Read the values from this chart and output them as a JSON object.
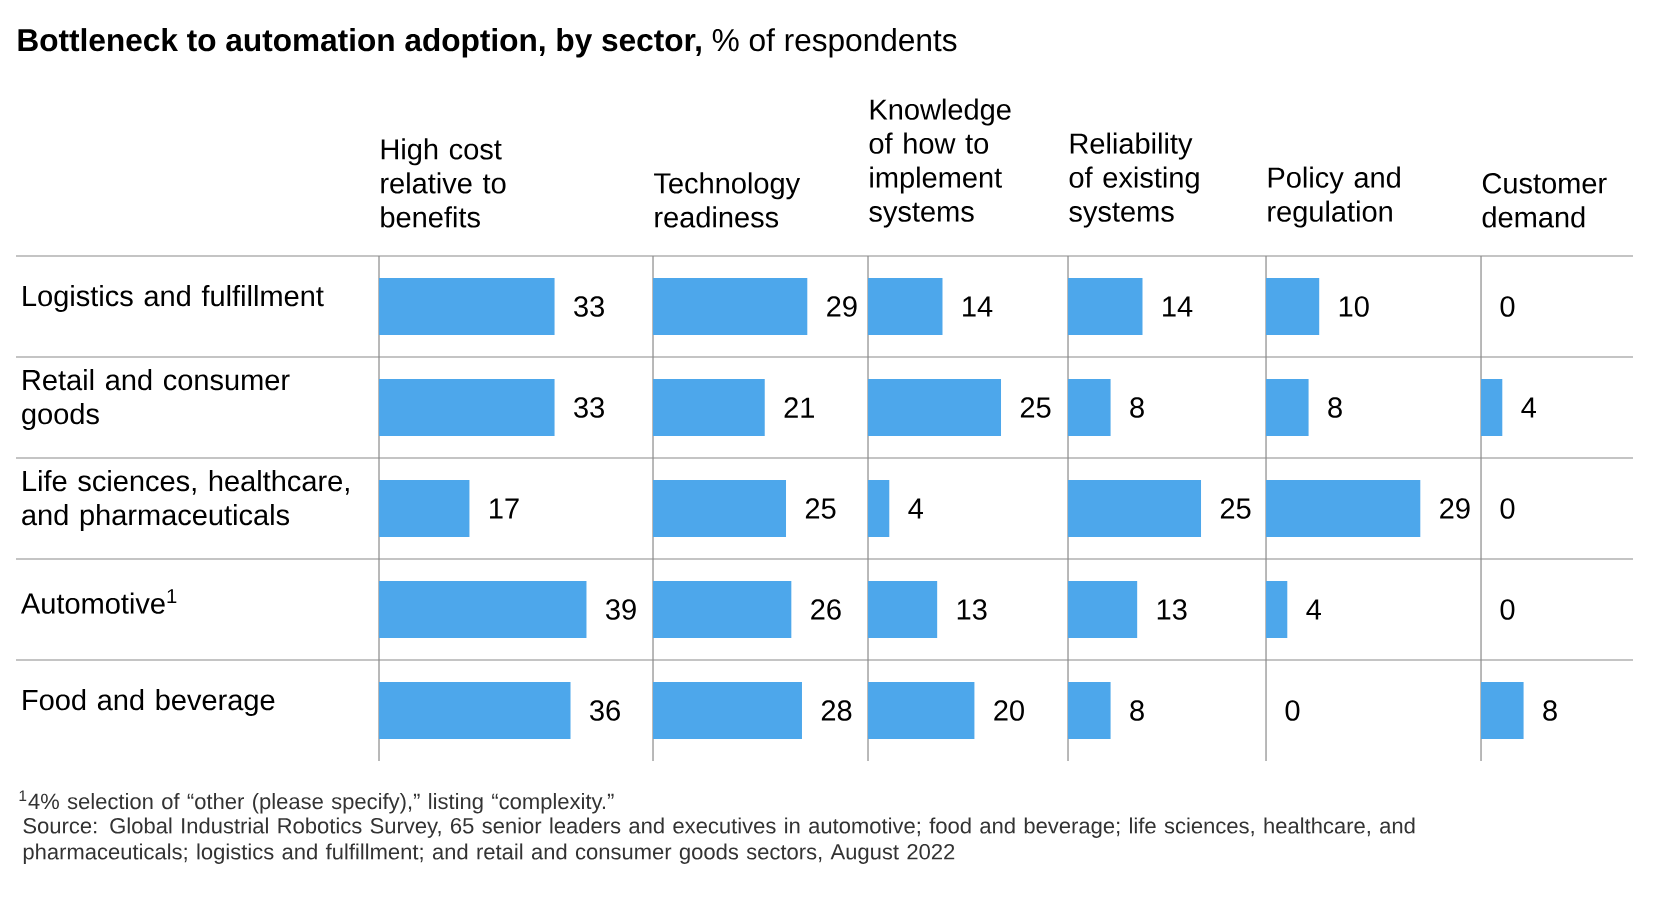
{
  "chart_data": [
    {
      "type": "other",
      "title": "**Bottleneck to automation adoption, by sector,** % of respondents",
      "annotations": [
        "$^{1}$4% selection of “other (please specify),” listing “complexity.”",
        "Source: Global Industrial Robotics Survey, 65 senior leaders and executives in automotive; food and beverage; life sciences, healthcare, and pharmaceuticals; logistics and fulfillment; and retail and consumer goods sectors, August 2022"
      ]
    },
    {
      "type": "bar",
      "orientation": "horizontal",
      "title": "High cost relative to benefits",
      "categories": [
        "Logistics and fulfillment",
        "Retail and consumer goods",
        "Life sciences, healthcare, and pharmaceuticals",
        "Automotive$^{1}$",
        "Food and beverage"
      ],
      "values": [
        33,
        33,
        17,
        39,
        36
      ],
      "color": "#4da7eb",
      "data_labels": true,
      "tick_labels": "y"
    },
    {
      "type": "bar",
      "orientation": "horizontal",
      "title": "Technology readiness",
      "categories": [
        null,
        null,
        null,
        null,
        null
      ],
      "values": [
        29,
        21,
        25,
        26,
        28
      ],
      "color": "#4da7eb",
      "data_labels": true,
      "tick_labels": false
    },
    {
      "type": "bar",
      "orientation": "horizontal",
      "title": "Knowledge of how to implement systems",
      "categories": [
        null,
        null,
        null,
        null,
        null
      ],
      "values": [
        14,
        25,
        4,
        13,
        20
      ],
      "color": "#4da7eb",
      "data_labels": true,
      "tick_labels": false
    },
    {
      "type": "bar",
      "orientation": "horizontal",
      "title": "Reliability of existing systems",
      "categories": [
        null,
        null,
        null,
        null,
        null
      ],
      "values": [
        14,
        8,
        25,
        13,
        8
      ],
      "color": "#4da7eb",
      "data_labels": true,
      "tick_labels": false
    },
    {
      "type": "bar",
      "orientation": "horizontal",
      "title": "Policy and regulation",
      "categories": [
        null,
        null,
        null,
        null,
        null
      ],
      "values": [
        10,
        8,
        29,
        4,
        0
      ],
      "color": "#4da7eb",
      "data_labels": true,
      "tick_labels": false
    },
    {
      "type": "bar",
      "orientation": "horizontal",
      "title": "Customer demand",
      "categories": [
        null,
        null,
        null,
        null,
        null
      ],
      "values": [
        0,
        4,
        0,
        0,
        8
      ],
      "color": "#4da7eb",
      "data_labels": true,
      "tick_labels": false
    }
  ]
}
